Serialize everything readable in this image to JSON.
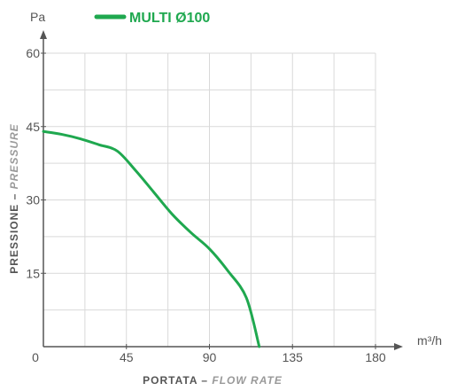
{
  "chart_data": {
    "type": "line",
    "legend": {
      "position": "top",
      "entries": [
        {
          "label": "MULTI Ø100",
          "color": "#1fa84f"
        }
      ]
    },
    "x_unit": "m³/h",
    "y_unit": "Pa",
    "xlabel_main": "PORTATA",
    "xlabel_sep": " – ",
    "xlabel_sub": "FLOW RATE",
    "ylabel_main": "PRESSIONE",
    "ylabel_sep": " – ",
    "ylabel_sub": "PRESSURE",
    "xlim": [
      0,
      180
    ],
    "ylim": [
      0,
      60
    ],
    "x_grid_step": 22.5,
    "y_grid_step": 7.5,
    "x_ticks": [
      {
        "value": 0,
        "label": "0"
      },
      {
        "value": 45,
        "label": "45"
      },
      {
        "value": 90,
        "label": "90"
      },
      {
        "value": 135,
        "label": "135"
      },
      {
        "value": 180,
        "label": "180"
      }
    ],
    "y_ticks": [
      {
        "value": 15,
        "label": "15"
      },
      {
        "value": 30,
        "label": "30"
      },
      {
        "value": 45,
        "label": "45"
      },
      {
        "value": 60,
        "label": "60"
      }
    ],
    "grid": true,
    "series": [
      {
        "name": "MULTI Ø100",
        "color": "#1fa84f",
        "x": [
          0,
          10,
          20,
          30,
          40,
          50,
          60,
          70,
          80,
          90,
          100,
          110,
          117
        ],
        "values": [
          44,
          43.4,
          42.5,
          41.3,
          40,
          36,
          31.5,
          27,
          23.3,
          20,
          15.5,
          10,
          0
        ]
      }
    ]
  },
  "colors": {
    "axis": "#555555",
    "grid": "#d9d9d9",
    "tick_text": "#555555",
    "label_main": "#555555",
    "label_sub": "#999999"
  }
}
